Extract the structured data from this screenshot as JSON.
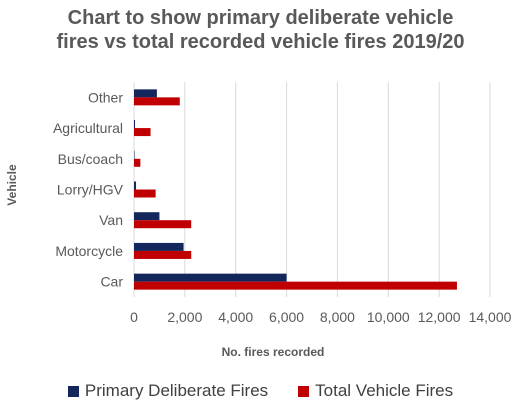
{
  "chart_data": {
    "type": "bar",
    "orientation": "horizontal",
    "title_lines": [
      "Chart to show primary deliberate vehicle",
      "fires vs total recorded vehicle fires 2019/20"
    ],
    "xlabel": "No. fires recorded",
    "ylabel": "Vehicle",
    "categories": [
      "Car",
      "Motorcycle",
      "Van",
      "Lorry/HGV",
      "Bus/coach",
      "Agricultural",
      "Other"
    ],
    "series": [
      {
        "name": "Primary Deliberate Fires",
        "color": "#14275c",
        "values": [
          6000,
          1950,
          1000,
          80,
          20,
          40,
          900
        ]
      },
      {
        "name": "Total Vehicle Fires",
        "color": "#c00000",
        "values": [
          12700,
          2250,
          2250,
          850,
          250,
          650,
          1800
        ]
      }
    ],
    "xlim": [
      0,
      14000
    ],
    "xticks": [
      "0",
      "2,000",
      "4,000",
      "6,000",
      "8,000",
      "10,000",
      "12,000",
      "14,000"
    ],
    "grid": true,
    "legend_position": "bottom"
  }
}
